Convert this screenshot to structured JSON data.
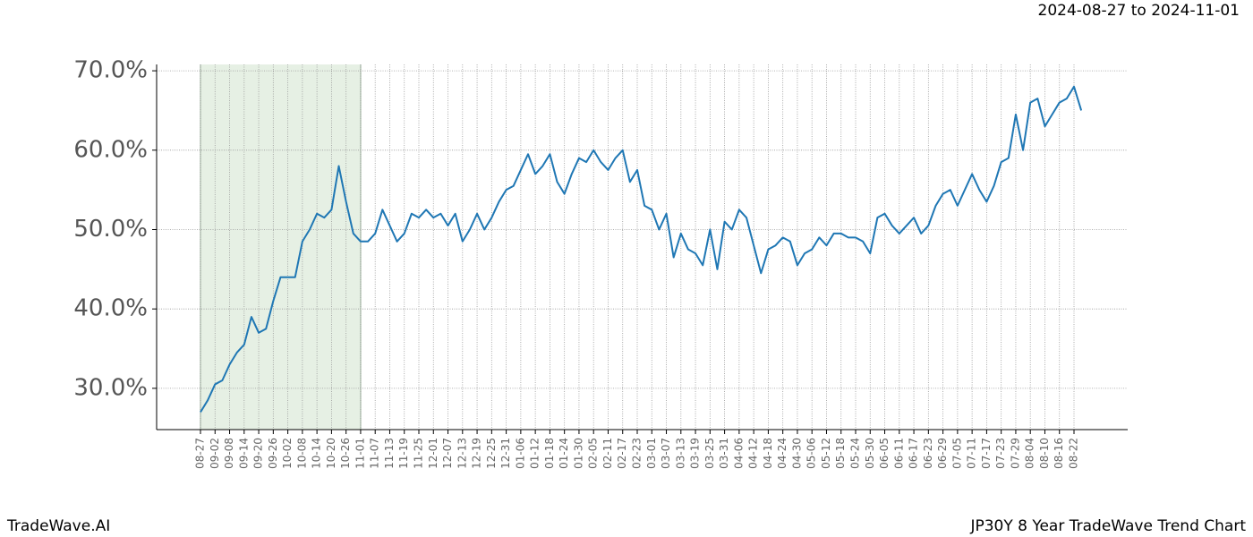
{
  "chart_data": {
    "type": "line",
    "title": "JP30Y 8 Year TradeWave Trend Chart",
    "subtitle": "2024-08-27 to 2024-11-01",
    "brand": "TradeWave.AI",
    "categories": [
      "08-27",
      null,
      "09-02",
      null,
      "09-08",
      null,
      "09-14",
      null,
      "09-20",
      null,
      "09-26",
      null,
      "10-02",
      null,
      "10-08",
      null,
      "10-14",
      null,
      "10-20",
      null,
      "10-26",
      null,
      "11-01",
      null,
      "11-07",
      null,
      "11-13",
      null,
      "11-19",
      null,
      "11-25",
      null,
      "12-01",
      null,
      "12-07",
      null,
      "12-13",
      null,
      "12-19",
      null,
      "12-25",
      null,
      "12-31",
      null,
      "01-06",
      null,
      "01-12",
      null,
      "01-18",
      null,
      "01-24",
      null,
      "01-30",
      null,
      "02-05",
      null,
      "02-11",
      null,
      "02-17",
      null,
      "02-23",
      null,
      "03-01",
      null,
      "03-07",
      null,
      "03-13",
      null,
      "03-19",
      null,
      "03-25",
      null,
      "03-31",
      null,
      "04-06",
      null,
      "04-12",
      null,
      "04-18",
      null,
      "04-24",
      null,
      "04-30",
      null,
      "05-06",
      null,
      "05-12",
      null,
      "05-18",
      null,
      "05-24",
      null,
      "05-30",
      null,
      "06-05",
      null,
      "06-11",
      null,
      "06-17",
      null,
      "06-23",
      null,
      "06-29",
      null,
      "07-05",
      null,
      "07-11",
      null,
      "07-17",
      null,
      "07-23",
      null,
      "07-29",
      null,
      "08-04",
      null,
      "08-10",
      null,
      "08-16",
      null,
      "08-22",
      null
    ],
    "series": [
      {
        "name": "JP30Y",
        "color": "#1f77b4",
        "values": [
          27.0,
          28.5,
          30.5,
          31.0,
          33.0,
          34.5,
          35.5,
          39.0,
          37.0,
          37.5,
          41.0,
          44.0,
          44.0,
          44.0,
          48.5,
          50.0,
          52.0,
          51.5,
          52.5,
          58.0,
          53.5,
          49.5,
          48.5,
          48.5,
          49.5,
          52.5,
          50.5,
          48.5,
          49.5,
          52.0,
          51.5,
          52.5,
          51.5,
          52.0,
          50.5,
          52.0,
          48.5,
          50.0,
          52.0,
          50.0,
          51.5,
          53.5,
          55.0,
          55.5,
          57.5,
          59.5,
          57.0,
          58.0,
          59.5,
          56.0,
          54.5,
          57.0,
          59.0,
          58.5,
          60.0,
          58.5,
          57.5,
          59.0,
          60.0,
          56.0,
          57.5,
          53.0,
          52.5,
          50.0,
          52.0,
          46.5,
          49.5,
          47.5,
          47.0,
          45.5,
          50.0,
          45.0,
          51.0,
          50.0,
          52.5,
          51.5,
          48.0,
          44.5,
          47.5,
          48.0,
          49.0,
          48.5,
          45.5,
          47.0,
          47.5,
          49.0,
          48.0,
          49.5,
          49.5,
          49.0,
          49.0,
          48.5,
          47.0,
          51.5,
          52.0,
          50.5,
          49.5,
          50.5,
          51.5,
          49.5,
          50.5,
          53.0,
          54.5,
          55.0,
          53.0,
          55.0,
          57.0,
          55.0,
          53.5,
          55.5,
          58.5,
          59.0,
          64.5,
          60.0,
          66.0,
          66.5,
          63.0,
          64.5,
          66.0,
          66.5,
          68.0,
          65.0
        ]
      }
    ],
    "ylim": [
      24.8,
      70.8
    ],
    "yticks": [
      {
        "value": 30,
        "label": "30.0%"
      },
      {
        "value": 40,
        "label": "40.0%"
      },
      {
        "value": 50,
        "label": "50.0%"
      },
      {
        "value": 60,
        "label": "60.0%"
      },
      {
        "value": 70,
        "label": "70.0%"
      }
    ],
    "grid": true,
    "shaded_span": {
      "from": "08-27",
      "to": "11-01",
      "color": "#e6f0e4"
    }
  }
}
